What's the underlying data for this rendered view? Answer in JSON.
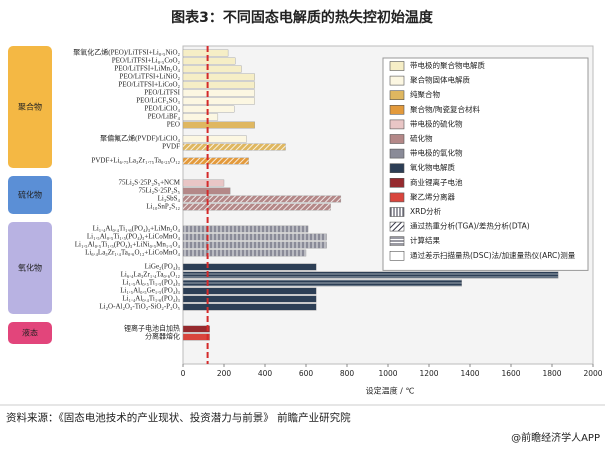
{
  "chart_data": {
    "type": "bar",
    "orientation": "horizontal",
    "title": "图表3：不同固态电解质的热失控初始温度",
    "x_label": "设定温度 / ℃",
    "xlim": [
      0,
      2000
    ],
    "xticks": [
      0,
      200,
      400,
      600,
      800,
      1000,
      1200,
      1400,
      1600,
      1800,
      2000
    ],
    "reference_line": 120,
    "reference_color": "#d42a2a",
    "legend": [
      {
        "label": "带电极的聚合物电解质",
        "color": "#f6eec6"
      },
      {
        "label": "聚合物固体电解质",
        "color": "#fcf7e2"
      },
      {
        "label": "纯聚合物",
        "color": "#dfb760"
      },
      {
        "label": "聚合物/陶瓷复合材料",
        "color": "#e39a3c"
      },
      {
        "label": "带电极的硫化物",
        "color": "#e9c6c6"
      },
      {
        "label": "硫化物",
        "color": "#b48888"
      },
      {
        "label": "带电极的氧化物",
        "color": "#8a8b98"
      },
      {
        "label": "氧化物电解质",
        "color": "#2c3e55"
      },
      {
        "label": "商业锂离子电池",
        "color": "#962a2e"
      },
      {
        "label": "聚乙烯分离器",
        "color": "#d9453d"
      },
      {
        "label": "XRD分析",
        "pattern": "vlines"
      },
      {
        "label": "通过热重分析(TGA)/差热分析(DTA)",
        "pattern": "diag"
      },
      {
        "label": "计算结果",
        "pattern": "hlines"
      },
      {
        "label": "通过差示扫描量热(DSC)法/加速量热仪(ARC)测量",
        "pattern": "none"
      }
    ],
    "groups": [
      {
        "label": "聚合物",
        "color": "#f4b844",
        "bars": [
          {
            "label": "聚氧化乙烯(PEO)/LiTFSI+Li₀.₅NiO₂",
            "value": 220,
            "fill": 0
          },
          {
            "label": "PEO/LiTFSI+Li₀.₅CoO₂",
            "value": 255,
            "fill": 0
          },
          {
            "label": "PEO/LiTFSI+LiMn₂O₄",
            "value": 285,
            "fill": 0
          },
          {
            "label": "PEO/LiTFSI+LiNiO₂",
            "value": 350,
            "fill": 0
          },
          {
            "label": "PEO/LiTFSI+LiCoO₂",
            "value": 350,
            "fill": 0
          },
          {
            "label": "PEO/LiTFSI",
            "value": 350,
            "fill": 1
          },
          {
            "label": "PEO/LiCF₃SO₃",
            "value": 350,
            "fill": 1
          },
          {
            "label": "PEO/LiClO₄",
            "value": 250,
            "fill": 1
          },
          {
            "label": "PEO/LiBF₄",
            "value": 170,
            "fill": 1
          },
          {
            "label": "PEO",
            "value": 350,
            "fill": 2
          },
          {
            "label": "聚偏氟乙烯(PVDF)/LiClO₄",
            "value": 310,
            "fill": 1,
            "gap_before": true
          },
          {
            "label": "PVDF",
            "value": 500,
            "fill": 2,
            "hatch": 11
          },
          {
            "label": "PVDF+Li₆.₇₅La₃Zr₁.₇₅Ta₀.₂₅O₁₂",
            "value": 320,
            "fill": 3,
            "hatch": 11,
            "gap_before": true
          }
        ]
      },
      {
        "label": "硫化物",
        "color": "#5b8fd6",
        "bars": [
          {
            "label": "75Li₂S·25P₂S₅+NCM",
            "value": 200,
            "fill": 4
          },
          {
            "label": "75Li₂S·25P₂S₅",
            "value": 230,
            "fill": 5
          },
          {
            "label": "Li₃SbS₄",
            "value": 770,
            "fill": 5,
            "hatch": 11
          },
          {
            "label": "Li₁₀SnP₂S₁₂",
            "value": 720,
            "fill": 5,
            "hatch": 11
          }
        ]
      },
      {
        "label": "氧化物",
        "color": "#b8b2e2",
        "bars": [
          {
            "label": "Li₁.₄Al₀.₄Ti₁.₆(PO₄)₃+LiMn₂O₄",
            "value": 610,
            "fill": 6,
            "hatch": 10
          },
          {
            "label": "Li₁.₅Al₀.₅Ti₁.₅(PO₄)₃+LiCoMnO₄",
            "value": 700,
            "fill": 6,
            "hatch": 10
          },
          {
            "label": "Li₁.₅Al₀.₅Ti₁.₅(PO₄)₃+LiNi₀.₅Mn₁.₅O₄",
            "value": 700,
            "fill": 6,
            "hatch": 10
          },
          {
            "label": "Li₆.₄La₃Zr₁.₄Ta₀.₆O₁₂+LiCoMnO₄",
            "value": 600,
            "fill": 6,
            "hatch": 10
          },
          {
            "label": "LiGe₂(PO₄)₃",
            "value": 650,
            "fill": 7,
            "gap_before": true
          },
          {
            "label": "Li₆.₄La₃Zr₁.₄Ta₀.₆O₁₂",
            "value": 1830,
            "fill": 7,
            "hatch": 12
          },
          {
            "label": "Li₁.₅Al₀.₅Ti₁.₅(PO₄)₃",
            "value": 1360,
            "fill": 7,
            "hatch": 12
          },
          {
            "label": "Li₁.₅Al₀.₅Ge₁.₅(PO₄)₃",
            "value": 650,
            "fill": 7
          },
          {
            "label": "Li₁.₄Al₀.₄Ti₁.₆(PO₄)₃",
            "value": 650,
            "fill": 7
          },
          {
            "label": "Li₂O-Al₂O₃-TiO₂-SiO₂-P₂O₅",
            "value": 650,
            "fill": 7
          }
        ]
      },
      {
        "label": "液态",
        "color": "#e2457b",
        "bars": [
          {
            "label": "锂离子电池自加热",
            "value": 130,
            "fill": 8
          },
          {
            "label": "分离器熔化",
            "value": 130,
            "fill": 9
          }
        ]
      }
    ],
    "source": "资料来源：《固态电池技术的产业现状、投资潜力与前景》 前瞻产业研究院",
    "credit": "@前瞻经济学人APP"
  }
}
